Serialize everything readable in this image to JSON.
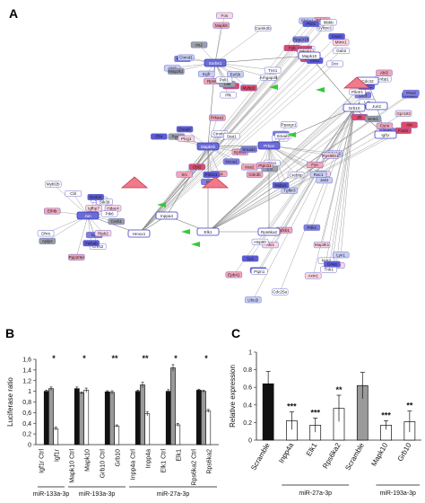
{
  "panels": {
    "a": "A",
    "b": "B",
    "c": "C"
  },
  "network": {
    "hub_nodes": [
      "Sorbs1",
      "Jun",
      "Mapk4k",
      "Prkce",
      "Grb10",
      "Elk1",
      "Hmox1",
      "Inppa4",
      "Mapk10",
      "Rps6ka2",
      "Igf1r",
      "Jun2",
      "Cdc42"
    ],
    "nodes": [
      "Pcaw1",
      "Ppp2r5e",
      "Iras2",
      "Evl",
      "Abi1",
      "Ccl2",
      "Ppp2r1b",
      "Tns1",
      "Chrs2",
      "Zrg1",
      "Prkc1",
      "Nck2",
      "Ltb3",
      "Sytrpo1",
      "Arhgap26",
      "Ptk2",
      "Rgs2",
      "Plyhv",
      "Ptk2b",
      "Zb",
      "Mtmr1",
      "Ctnnd1",
      "Dhrs",
      "Ncl",
      "Tgfbr3",
      "Lyn1",
      "Abl2",
      "Gab2",
      "Vcl",
      "Cbl",
      "Epha1",
      "Itsn1",
      "Epb41",
      "Pag1",
      "Cwa1",
      "Mybp2",
      "Mybl2b",
      "Fgr",
      "Fyn",
      "Pdk1",
      "Lck",
      "Rbp1",
      "Csk",
      "Ywhab",
      "Plcg1",
      "Cd28",
      "Grb2",
      "Fnbp1",
      "Abt1",
      "Egfr",
      "Syk",
      "Cbl2",
      "Ptpn11",
      "Map3k1",
      "Akt",
      "Fyb",
      "Akt3",
      "Aplp2",
      "Prkaa1",
      "Prkab2",
      "Ptpn1",
      "Pik3r1",
      "Pdpk1",
      "Map2k1",
      "Ripk2",
      "Smad2",
      "Smad3",
      "Sp1",
      "Nr1l2",
      "Ets1",
      "Pfk",
      "Stk39",
      "Ctnnb1",
      "Gsk3b",
      "Axin1",
      "Cycs",
      "Sos1",
      "Mapk8",
      "Igfbp7",
      "Pik3c1",
      "Jak2",
      "Tnk1",
      "Wnk1",
      "Map1b",
      "Camk2b",
      "Hdac4",
      "Ncoa1",
      "Ppargc1",
      "Cdc25a",
      "Fosl1",
      "Ikbkb",
      "Irs2",
      "Ptk6",
      "Src",
      "Rac1",
      "Nfkb1",
      "Mdm2",
      "Dcx",
      "Fos",
      "Nedd4",
      "Stat1",
      "Crebbp",
      "Ube2i",
      "Stat4",
      "Mknk1",
      "Rps6",
      "Eif4b",
      "Dusp6",
      "Rps6kb1",
      "Gnas",
      "Gpr183",
      "Slc9a1",
      "Eef2k",
      "Creb1",
      "Elf4",
      "Ssbp1",
      "Hsp90",
      "Pex3",
      "Pkn1",
      "Peli1"
    ]
  },
  "chart_b": {
    "ylabel": "Luciferase ratio",
    "ylim": [
      0,
      1.6
    ],
    "yticks": [
      "0",
      "0,2",
      "0,4",
      "0,6",
      "0,8",
      "1",
      "1,2",
      "1,4",
      "1,6"
    ],
    "categories": [
      "Igf1r Ctrl",
      "Igf1r",
      "Mapk10 Ctrl",
      "Mapk10",
      "Grb10 Ctrl",
      "Grb10",
      "Inpp4a Ctrl",
      "Inpp4a",
      "Elk1 Ctrl",
      "Elk1",
      "Rps6ka2 Ctrl",
      "Rps6ka2"
    ],
    "series": [
      {
        "values": [
          1.0,
          1.05,
          0.99,
          1.0,
          1.0,
          1.02
        ]
      },
      {
        "values": [
          1.05,
          0.97,
          0.98,
          1.12,
          1.44,
          1.0
        ]
      },
      {
        "values": [
          0.3,
          1.02,
          0.35,
          0.58,
          0.37,
          0.63
        ]
      }
    ],
    "errors": [
      [
        0.02,
        0.03,
        0.02,
        0.02,
        0.03,
        0.02
      ],
      [
        0.03,
        0.02,
        0.03,
        0.05,
        0.06,
        0.02
      ],
      [
        0.03,
        0.04,
        0.02,
        0.04,
        0.03,
        0.03
      ]
    ],
    "significance": [
      "*",
      "*",
      "**",
      "**",
      "*",
      "*"
    ],
    "groups": [
      "miR-133a-3p",
      "miR-193a-3p",
      "miR-27a-3p"
    ]
  },
  "chart_c": {
    "ylabel": "Relative expression",
    "ylim": [
      0,
      1.0
    ],
    "yticks": [
      "0",
      "0.2",
      "0.4",
      "0.6",
      "0.8",
      "1"
    ],
    "categories": [
      "Scramble",
      "Inpp4a",
      "Elk1",
      "Rps6ka2",
      "Scramble",
      "Mapk10",
      "Grb10"
    ],
    "values": [
      0.64,
      0.22,
      0.17,
      0.36,
      0.62,
      0.17,
      0.21
    ],
    "errors": [
      0.14,
      0.1,
      0.08,
      0.15,
      0.15,
      0.05,
      0.12
    ],
    "significance": [
      "",
      "***",
      "***",
      "**",
      "",
      "***",
      "**"
    ],
    "groups": [
      "miR-27a-3p",
      "miR-193a-3p"
    ]
  }
}
